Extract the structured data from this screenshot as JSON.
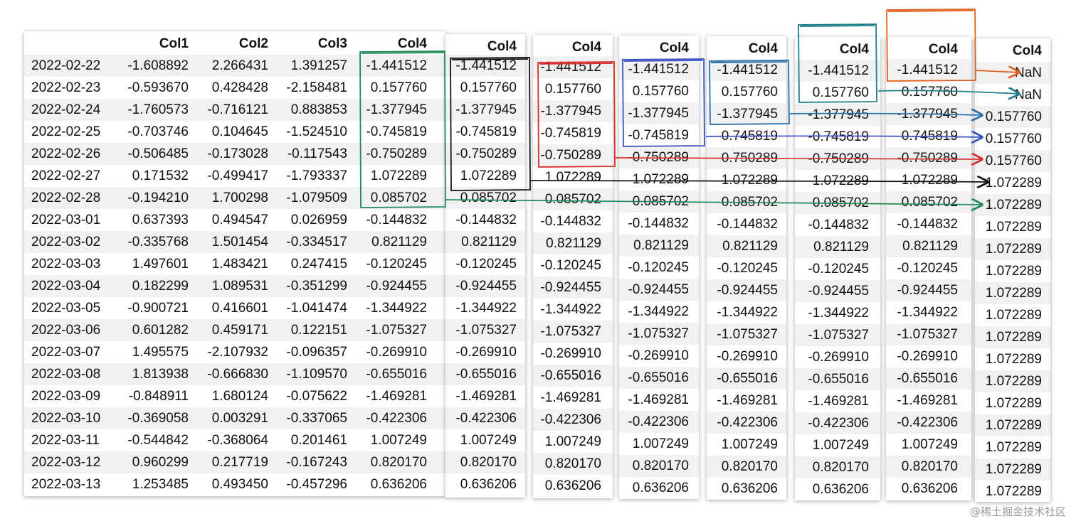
{
  "main_table": {
    "headers": [
      "Col1",
      "Col2",
      "Col3",
      "Col4"
    ],
    "rows": [
      [
        "2022-02-22",
        "-1.608892",
        "2.266431",
        "1.391257",
        "-1.441512"
      ],
      [
        "2022-02-23",
        "-0.593670",
        "0.428428",
        "-2.158481",
        "0.157760"
      ],
      [
        "2022-02-24",
        "-1.760573",
        "-0.716121",
        "0.883853",
        "-1.377945"
      ],
      [
        "2022-02-25",
        "-0.703746",
        "0.104645",
        "-1.524510",
        "-0.745819"
      ],
      [
        "2022-02-26",
        "-0.506485",
        "-0.173028",
        "-0.117543",
        "-0.750289"
      ],
      [
        "2022-02-27",
        "0.171532",
        "-0.499417",
        "-1.793337",
        "1.072289"
      ],
      [
        "2022-02-28",
        "-0.194210",
        "1.700298",
        "-1.079509",
        "0.085702"
      ],
      [
        "2022-03-01",
        "0.637393",
        "0.494547",
        "0.026959",
        "-0.144832"
      ],
      [
        "2022-03-02",
        "-0.335768",
        "1.501454",
        "-0.334517",
        "0.821129"
      ],
      [
        "2022-03-03",
        "1.497601",
        "1.483421",
        "0.247415",
        "-0.120245"
      ],
      [
        "2022-03-04",
        "0.182299",
        "1.089531",
        "-0.351299",
        "-0.924455"
      ],
      [
        "2022-03-05",
        "-0.900721",
        "0.416601",
        "-1.041474",
        "-1.344922"
      ],
      [
        "2022-03-06",
        "0.601282",
        "0.459171",
        "0.122151",
        "-1.075327"
      ],
      [
        "2022-03-07",
        "1.495575",
        "-2.107932",
        "-0.096357",
        "-0.269910"
      ],
      [
        "2022-03-08",
        "1.813938",
        "-0.666830",
        "-1.109570",
        "-0.655016"
      ],
      [
        "2022-03-09",
        "-0.848911",
        "1.680124",
        "-0.075622",
        "-1.469281"
      ],
      [
        "2022-03-10",
        "-0.369058",
        "0.003291",
        "-0.337065",
        "-0.422306"
      ],
      [
        "2022-03-11",
        "-0.544842",
        "-0.368064",
        "0.201461",
        "1.007249"
      ],
      [
        "2022-03-12",
        "0.960299",
        "0.217719",
        "-0.167243",
        "0.820170"
      ],
      [
        "2022-03-13",
        "1.253485",
        "0.493450",
        "-0.457296",
        "0.636206"
      ]
    ]
  },
  "col4_header": "Col4",
  "col4_values": [
    "-1.441512",
    "0.157760",
    "-1.377945",
    "-0.745819",
    "-0.750289",
    "1.072289",
    "0.085702",
    "-0.144832",
    "0.821129",
    "-0.120245",
    "-0.924455",
    "-1.344922",
    "-1.075327",
    "-0.269910",
    "-0.655016",
    "-1.469281",
    "-0.422306",
    "1.007249",
    "0.820170",
    "0.636206"
  ],
  "result_column": {
    "header": "Col4",
    "values": [
      "NaN",
      "NaN",
      "0.157760",
      "0.157760",
      "0.157760",
      "1.072289",
      "1.072289",
      "1.072289",
      "1.072289",
      "1.072289",
      "1.072289",
      "1.072289",
      "1.072289",
      "1.072289",
      "1.072289",
      "1.072289",
      "1.072289",
      "1.072289",
      "1.072289",
      "1.072289"
    ]
  },
  "window_colors": {
    "green": "#1f8a5a",
    "black": "#111111",
    "red": "#d6312d",
    "blue": "#3a4fc2",
    "steel_blue": "#2a6fa8",
    "teal": "#1c7f8c",
    "orange": "#e0601e"
  },
  "watermark": "@稀土掘金技术社区"
}
